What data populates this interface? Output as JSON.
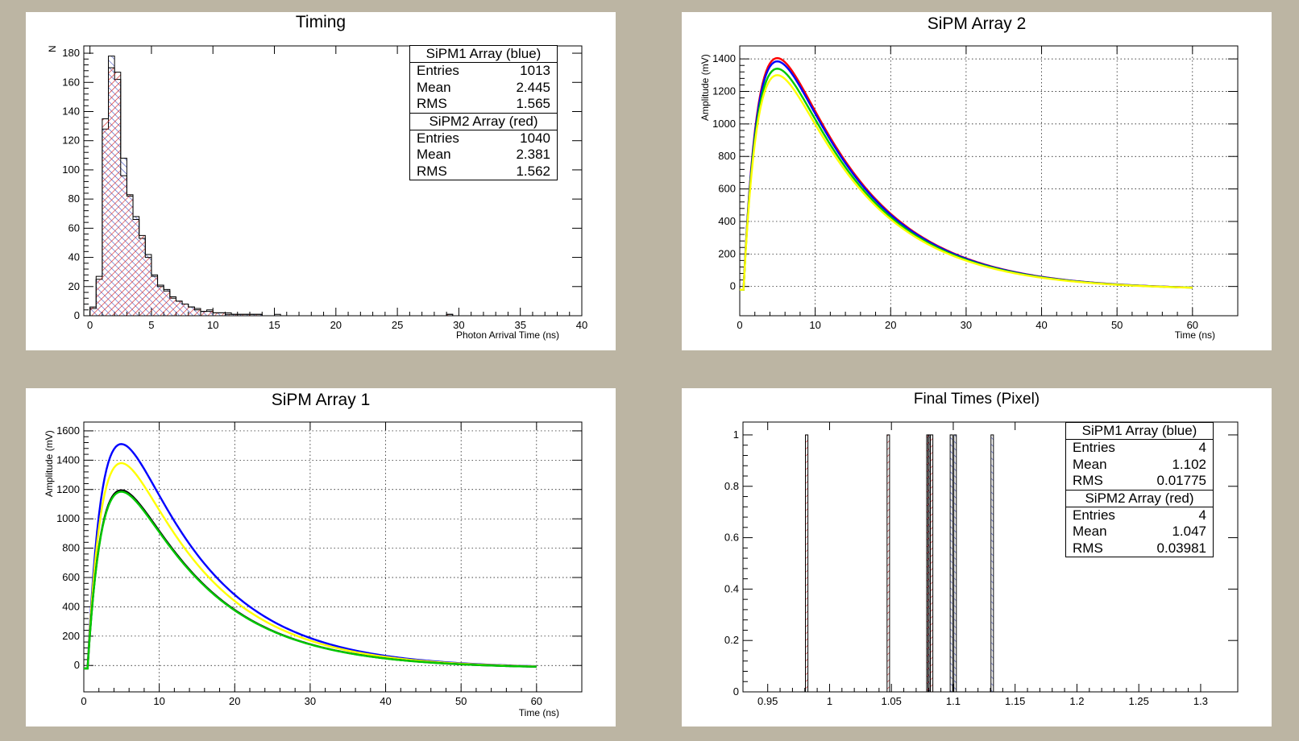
{
  "pads": {
    "timing": {
      "title": "Timing",
      "xlabel": "Photon Arrival Time (ns)",
      "ylabel": "N"
    },
    "sipm2": {
      "title": "SiPM Array 2",
      "xlabel": "Time (ns)",
      "ylabel": "Amplitude (mV)"
    },
    "sipm1": {
      "title": "SiPM Array 1",
      "xlabel": "Time (ns)",
      "ylabel": "Amplitude (mV)"
    },
    "final": {
      "title": "Final Times (Pixel)",
      "xlabel": "",
      "ylabel": ""
    }
  },
  "stats": {
    "timing": [
      {
        "title": "SiPM1 Array (blue)",
        "rows": [
          {
            "k": "Entries",
            "v": "1013"
          },
          {
            "k": "Mean",
            "v": "2.445"
          },
          {
            "k": "RMS",
            "v": "1.565"
          }
        ]
      },
      {
        "title": "SiPM2 Array (red)",
        "rows": [
          {
            "k": "Entries",
            "v": "1040"
          },
          {
            "k": "Mean",
            "v": "2.381"
          },
          {
            "k": "RMS",
            "v": "1.562"
          }
        ]
      }
    ],
    "final": [
      {
        "title": "SiPM1 Array (blue)",
        "rows": [
          {
            "k": "Entries",
            "v": "4"
          },
          {
            "k": "Mean",
            "v": "1.102"
          },
          {
            "k": "RMS",
            "v": "0.01775"
          }
        ]
      },
      {
        "title": "SiPM2 Array (red)",
        "rows": [
          {
            "k": "Entries",
            "v": "4"
          },
          {
            "k": "Mean",
            "v": "1.047"
          },
          {
            "k": "RMS",
            "v": "0.03981"
          }
        ]
      }
    ]
  },
  "colors": {
    "background": "#bcb5a3",
    "blue": "#0000ff",
    "red": "#ff0000",
    "green": "#00c800",
    "yellow": "#ffff00",
    "hatch_red": "#d62020",
    "hatch_blue": "#4050c0"
  },
  "chart_data": [
    {
      "type": "histogram",
      "title": "Timing",
      "xlabel": "Photon Arrival Time (ns)",
      "ylabel": "N",
      "xlim": [
        -0.5,
        40
      ],
      "ylim": [
        0,
        185
      ],
      "xticks": [
        0,
        5,
        10,
        15,
        20,
        25,
        30,
        35,
        40
      ],
      "yticks": [
        0,
        20,
        40,
        60,
        80,
        100,
        120,
        140,
        160,
        180
      ],
      "bin_width": 0.5,
      "bin_start": 0,
      "series": [
        {
          "name": "SiPM1 Array (blue)",
          "color": "#0000ff",
          "values": [
            5,
            25,
            128,
            178,
            162,
            108,
            82,
            68,
            53,
            42,
            28,
            21,
            18,
            12,
            10,
            8,
            6,
            4,
            3,
            3,
            2,
            2,
            2,
            1,
            1,
            1,
            1,
            1,
            0,
            0,
            1,
            0,
            0,
            0,
            0,
            0,
            0,
            0,
            0,
            0,
            0,
            0,
            0,
            0,
            0,
            0,
            0,
            0,
            0,
            0,
            0,
            0,
            0,
            0,
            0,
            0,
            0,
            0,
            1
          ]
        },
        {
          "name": "SiPM2 Array (red)",
          "color": "#ff0000",
          "values": [
            6,
            27,
            135,
            170,
            167,
            96,
            83,
            66,
            55,
            40,
            27,
            20,
            17,
            13,
            10,
            8,
            6,
            5,
            3,
            4,
            2,
            2,
            1,
            1,
            1,
            1,
            1,
            1,
            0,
            0,
            0,
            0,
            0,
            0,
            0,
            0,
            0,
            0,
            0,
            0,
            0,
            0,
            0,
            0,
            0,
            0,
            0,
            0,
            0,
            0,
            0,
            0,
            0,
            0,
            0,
            0,
            0,
            0,
            1
          ]
        }
      ]
    },
    {
      "type": "line",
      "title": "SiPM Array 2",
      "xlabel": "Time (ns)",
      "ylabel": "Amplitude (mV)",
      "xlim": [
        0,
        66
      ],
      "ylim": [
        -180,
        1480
      ],
      "xticks": [
        0,
        10,
        20,
        30,
        40,
        50,
        60
      ],
      "yticks": [
        0,
        200,
        400,
        600,
        800,
        1000,
        1200,
        1400
      ],
      "grid": true,
      "pulse_model": {
        "t0": 0.5,
        "tau_rise": 2.2,
        "tau_fall": 11.3,
        "baseline": -20
      },
      "series": [
        {
          "color": "#ff0000",
          "peak": 1405
        },
        {
          "color": "#0000ff",
          "peak": 1385
        },
        {
          "color": "#00c800",
          "peak": 1340
        },
        {
          "color": "#ffff00",
          "peak": 1300
        }
      ]
    },
    {
      "type": "line",
      "title": "SiPM Array 1",
      "xlabel": "Time (ns)",
      "ylabel": "Amplitude (mV)",
      "xlim": [
        0,
        66
      ],
      "ylim": [
        -180,
        1660
      ],
      "xticks": [
        0,
        10,
        20,
        30,
        40,
        50,
        60
      ],
      "yticks": [
        0,
        200,
        400,
        600,
        800,
        1000,
        1200,
        1400,
        1600
      ],
      "grid": true,
      "pulse_model": {
        "t0": 0.5,
        "tau_rise": 2.2,
        "tau_fall": 11.3,
        "baseline": -20
      },
      "series": [
        {
          "color": "#0000ff",
          "peak": 1510
        },
        {
          "color": "#ffff00",
          "peak": 1380
        },
        {
          "color": "#000000",
          "peak": 1195
        },
        {
          "color": "#00c800",
          "peak": 1185
        }
      ]
    },
    {
      "type": "histogram",
      "title": "Final Times (Pixel)",
      "xlim": [
        0.93,
        1.33
      ],
      "ylim": [
        0,
        1.05
      ],
      "xticks": [
        0.95,
        1,
        1.05,
        1.1,
        1.15,
        1.2,
        1.25,
        1.3
      ],
      "xtick_labels": [
        "0.95",
        "1",
        "1.05",
        "1.1",
        "1.15",
        "1.2",
        "1.25",
        "1.3"
      ],
      "yticks": [
        0,
        0.2,
        0.4,
        0.6,
        0.8,
        1
      ],
      "ytick_labels": [
        "0",
        "0.2",
        "0.4",
        "0.6",
        "0.8",
        "1"
      ],
      "bin_width": 0.002,
      "series": [
        {
          "name": "SiPM1 Array (blue)",
          "color": "#0000ff",
          "x": [
            1.0805,
            1.0985,
            1.1015,
            1.1315
          ],
          "values": [
            1,
            1,
            1,
            1
          ]
        },
        {
          "name": "SiPM2 Array (red)",
          "color": "#ff0000",
          "x": [
            0.9815,
            1.0475,
            1.0795,
            1.0825
          ],
          "values": [
            1,
            1,
            1,
            1
          ]
        }
      ]
    }
  ]
}
